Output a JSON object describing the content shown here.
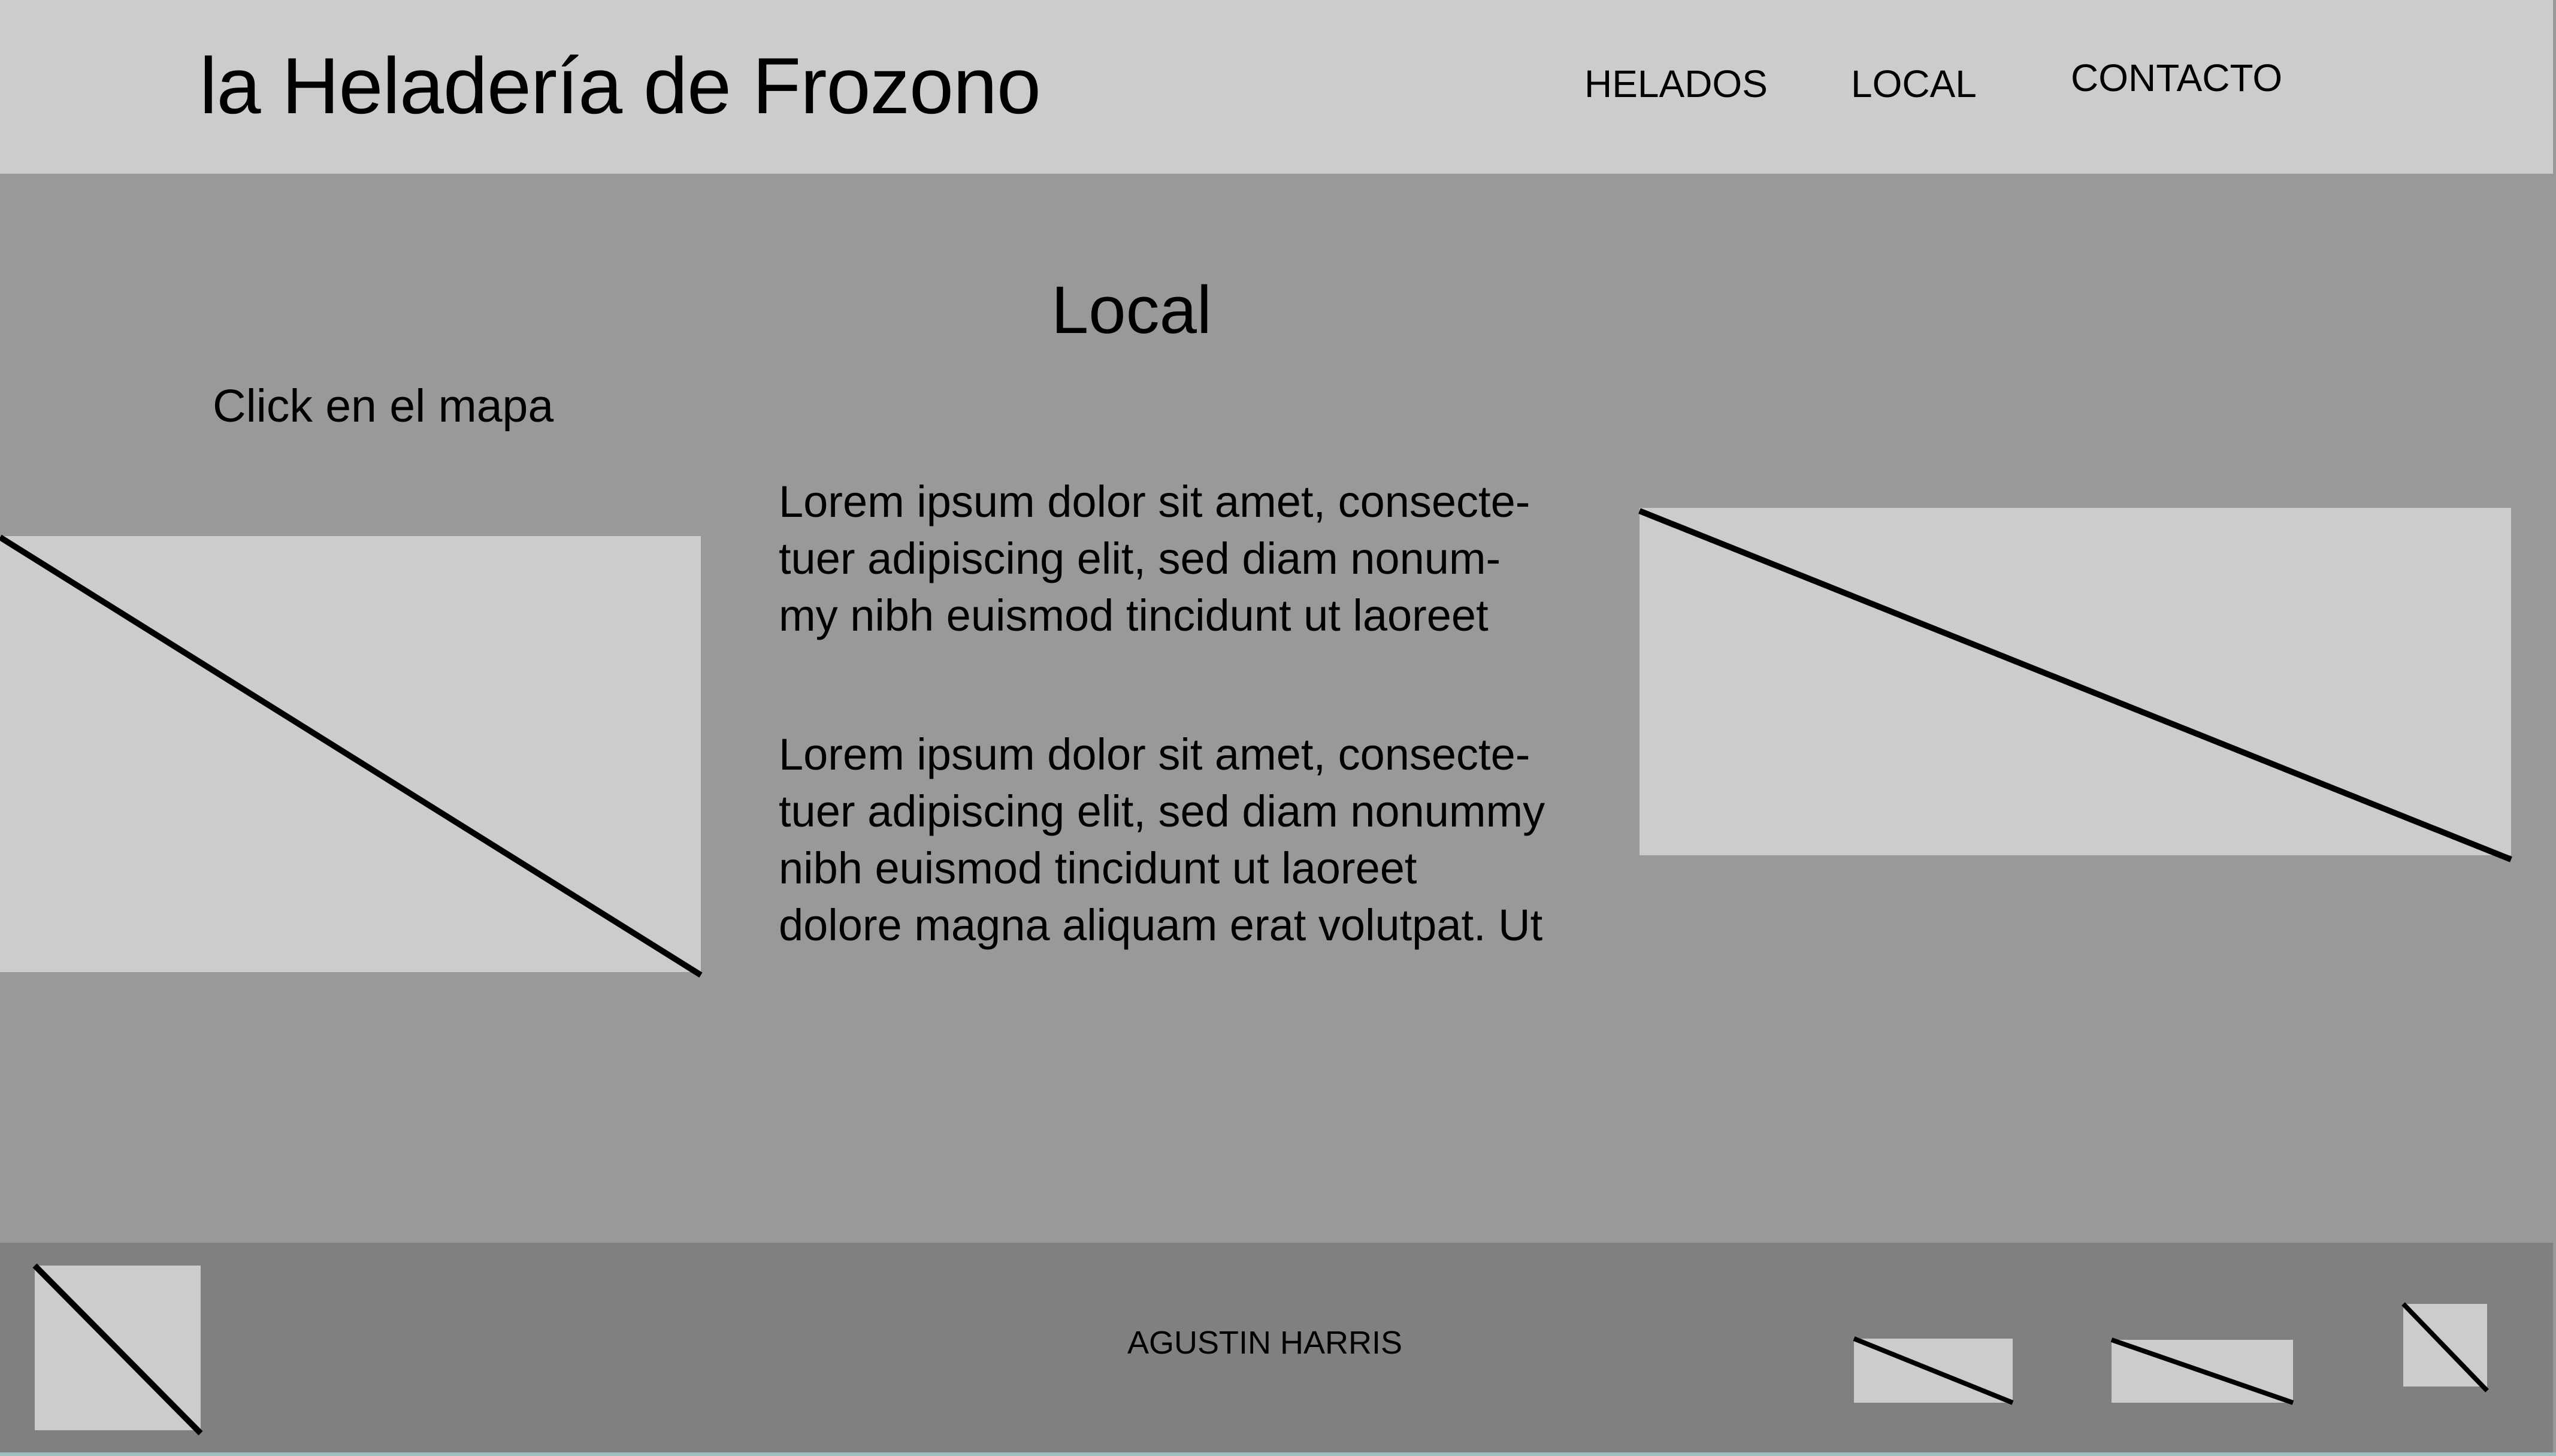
{
  "header": {
    "site_title": "la Heladería de Frozono",
    "nav": {
      "helados": "HELADOS",
      "local": "LOCAL",
      "contacto": "CONTACTO"
    }
  },
  "main": {
    "heading": "Local",
    "map_hint": "Click en el mapa",
    "paragraph_1": [
      "Lorem ipsum dolor sit amet, consecte-",
      "tuer adipiscing elit, sed diam nonum-",
      "my nibh euismod tincidunt ut laoreet"
    ],
    "paragraph_2": [
      "Lorem ipsum dolor sit amet, consecte-",
      "tuer adipiscing elit, sed diam nonummy",
      "nibh euismod tincidunt ut laoreet",
      "dolore magna aliquam erat volutpat. Ut"
    ]
  },
  "footer": {
    "author": "AGUSTIN HARRIS"
  },
  "colors": {
    "header_bg": "#cccccc",
    "main_bg": "#999999",
    "footer_bg": "#808080",
    "placeholder_bg": "#cccccc"
  }
}
